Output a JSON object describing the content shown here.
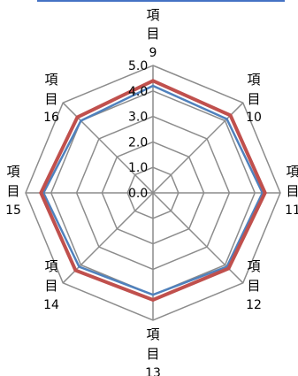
{
  "chart_data": {
    "type": "radar",
    "axes": [
      {
        "word": "項目",
        "num": "9"
      },
      {
        "word": "項目",
        "num": "10"
      },
      {
        "word": "項目",
        "num": "11"
      },
      {
        "word": "項目",
        "num": "12"
      },
      {
        "word": "項目",
        "num": "13"
      },
      {
        "word": "項目",
        "num": "14"
      },
      {
        "word": "項目",
        "num": "15"
      },
      {
        "word": "項目",
        "num": "16"
      }
    ],
    "rlim": [
      0,
      5
    ],
    "ticks": [
      "0.0",
      "1.0",
      "2.0",
      "3.0",
      "4.0",
      "5.0"
    ],
    "series": [
      {
        "color": "#4f81bd",
        "values": [
          4.2,
          4.1,
          4.3,
          4.1,
          4.0,
          4.1,
          4.3,
          4.0
        ]
      },
      {
        "color": "#c0504d",
        "values": [
          4.4,
          4.3,
          4.4,
          4.2,
          4.2,
          4.3,
          4.4,
          4.2
        ]
      }
    ],
    "grid": true,
    "legend": "none"
  }
}
